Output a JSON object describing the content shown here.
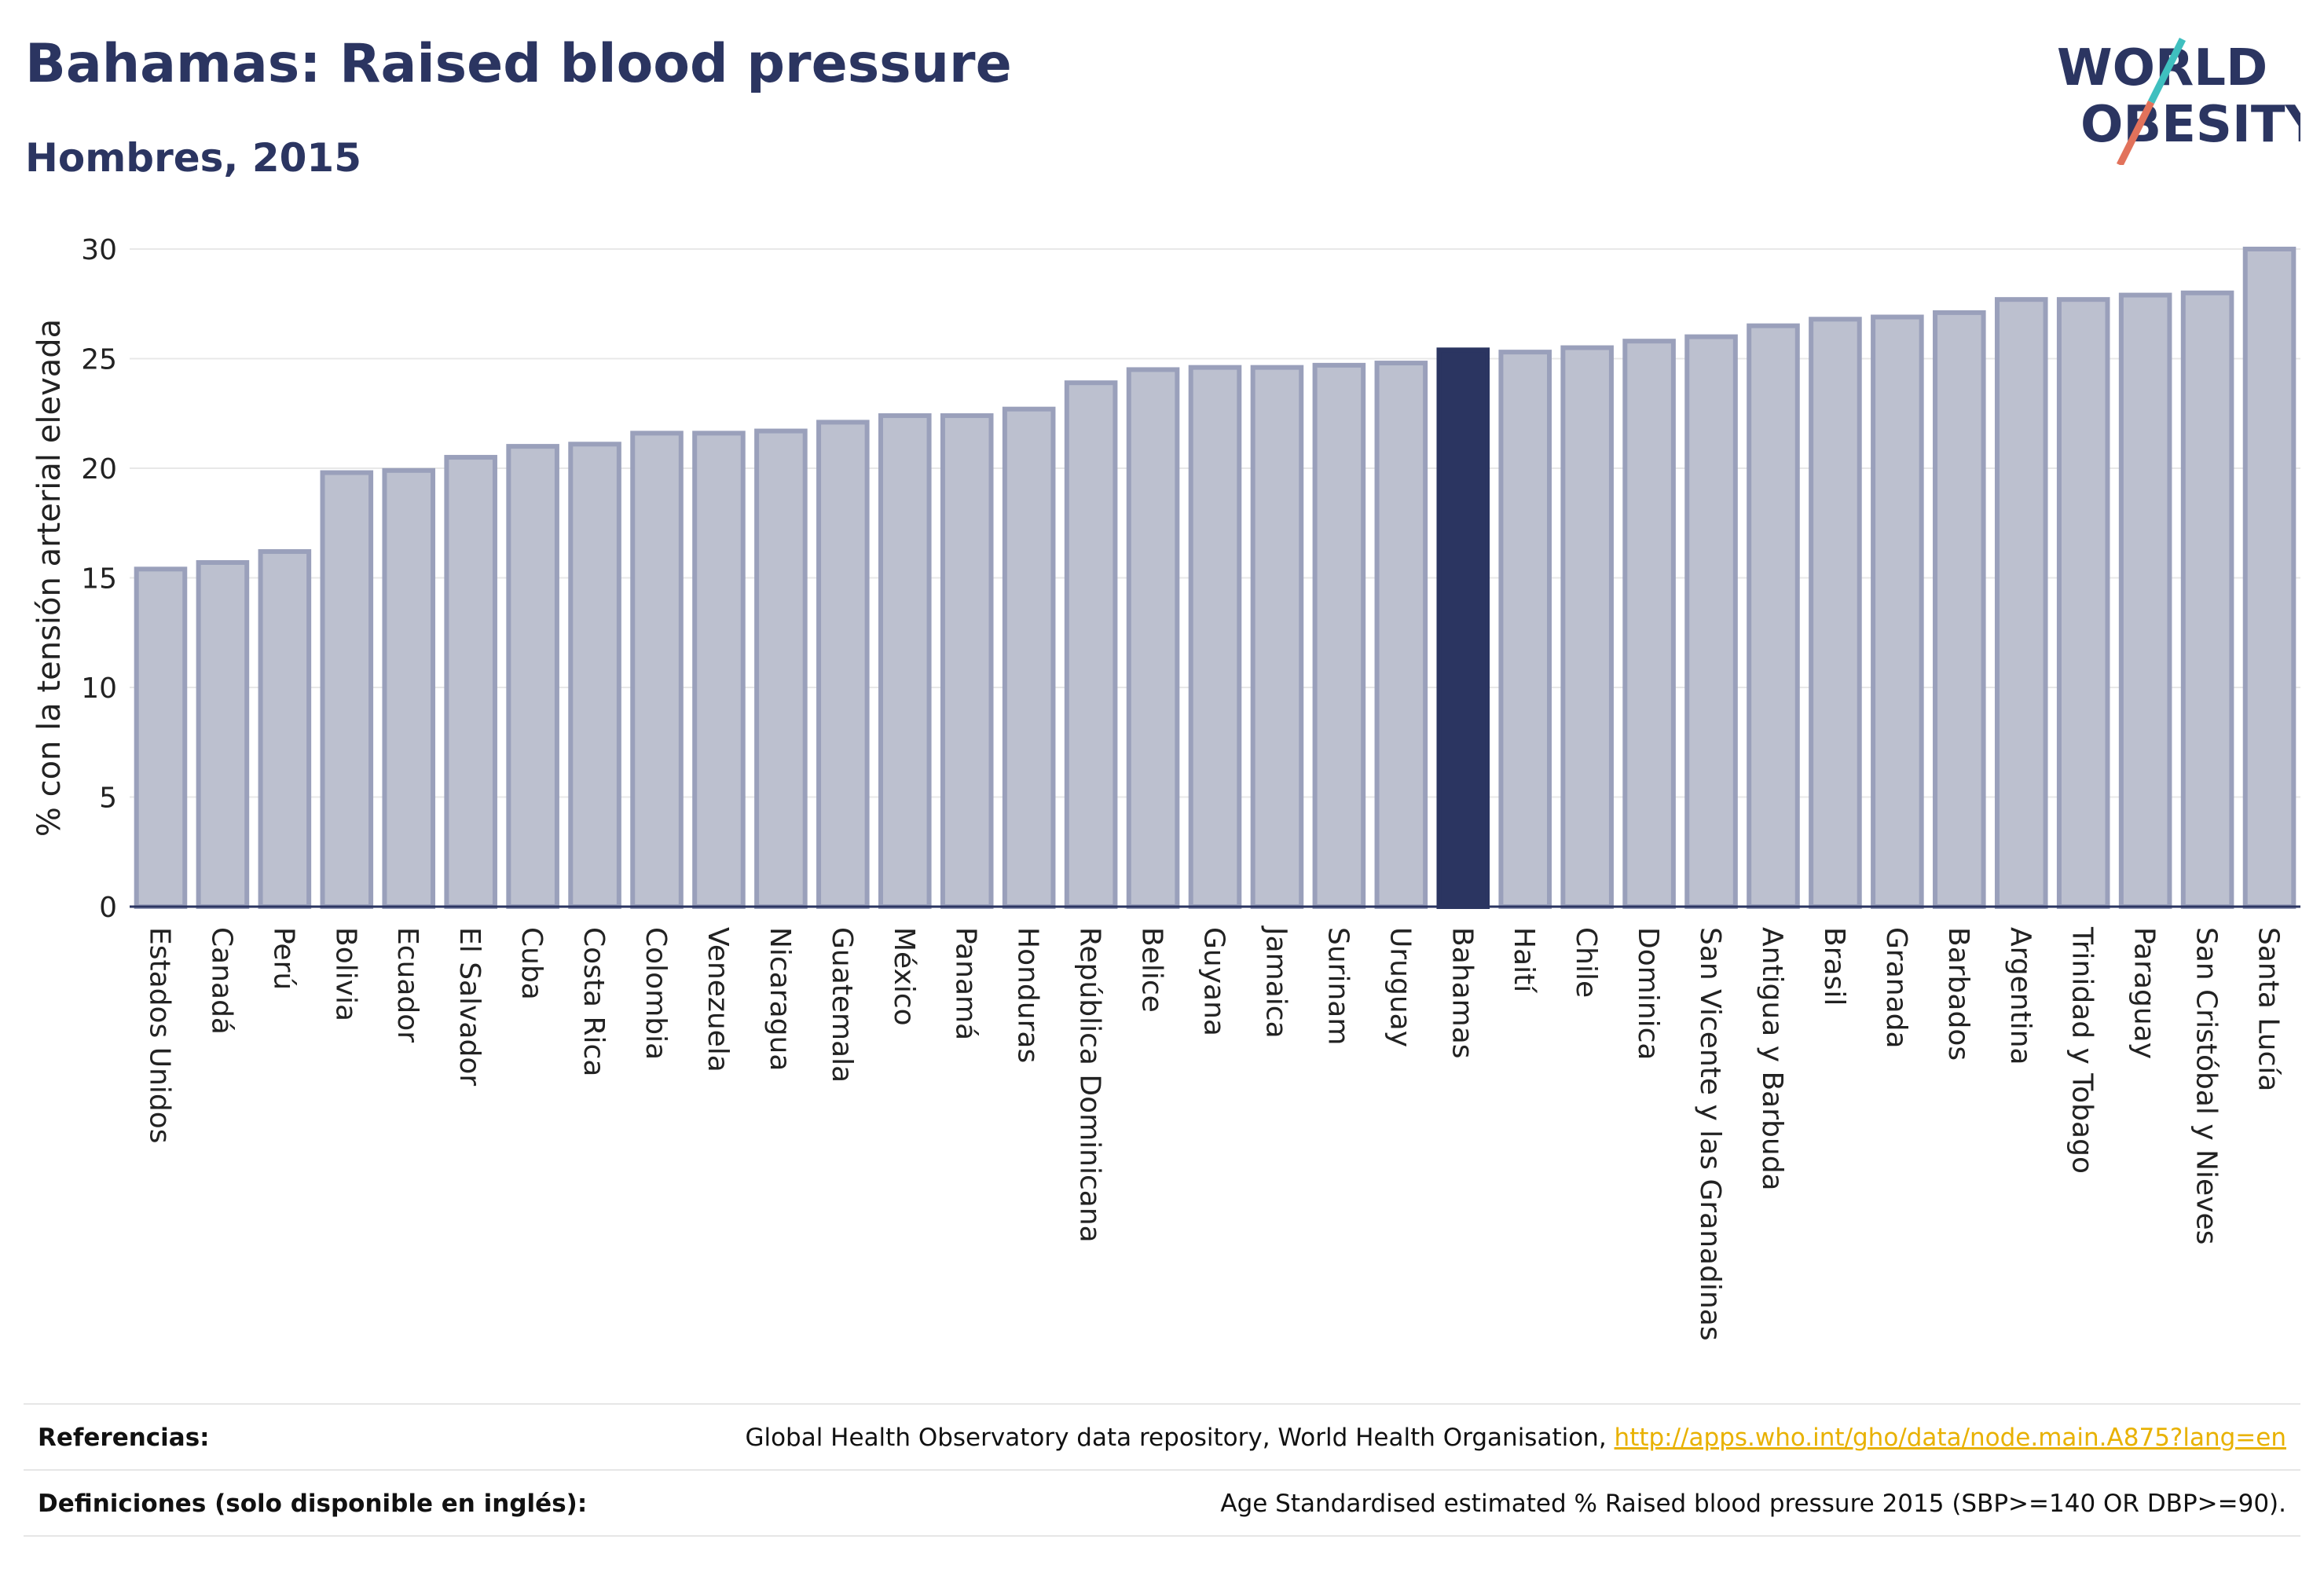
{
  "header": {
    "title": "Bahamas: Raised blood pressure",
    "subtitle": "Hombres, 2015"
  },
  "logo": {
    "line1": "WORLD",
    "line2": "OBESITY"
  },
  "chart_data": {
    "type": "bar",
    "ylabel": "% con la tensión arterial elevada",
    "ylim": [
      0,
      30
    ],
    "yticks": [
      0,
      5,
      10,
      15,
      20,
      25,
      30
    ],
    "grid": true,
    "highlight": "Bahamas",
    "colors": {
      "bar": "#bcc0cf",
      "bar_edge": "#9aa0bb",
      "highlight": "#2b3561"
    },
    "categories": [
      "Estados Unidos",
      "Canadá",
      "Perú",
      "Bolivia",
      "Ecuador",
      "El Salvador",
      "Cuba",
      "Costa Rica",
      "Colombia",
      "Venezuela",
      "Nicaragua",
      "Guatemala",
      "México",
      "Panamá",
      "Honduras",
      "República Dominicana",
      "Belice",
      "Guyana",
      "Jamaica",
      "Surinam",
      "Uruguay",
      "Bahamas",
      "Haití",
      "Chile",
      "Dominica",
      "San Vicente y las Granadinas",
      "Antigua y Barbuda",
      "Brasil",
      "Granada",
      "Barbados",
      "Argentina",
      "Trinidad y Tobago",
      "Paraguay",
      "San Cristóbal y Nieves",
      "Santa Lucía"
    ],
    "values": [
      15.4,
      15.7,
      16.2,
      19.8,
      19.9,
      20.5,
      21.0,
      21.1,
      21.6,
      21.6,
      21.7,
      22.1,
      22.4,
      22.4,
      22.7,
      23.9,
      24.5,
      24.6,
      24.6,
      24.7,
      24.8,
      25.4,
      25.3,
      25.5,
      25.8,
      26.0,
      26.5,
      26.8,
      26.9,
      27.1,
      27.7,
      27.7,
      27.9,
      28.0,
      30.0
    ]
  },
  "footer": {
    "references_label": "Referencias:",
    "references_text": "Global Health Observatory data repository, World Health Organisation, ",
    "references_link": "http://apps.who.int/gho/data/node.main.A875?lang=en",
    "definitions_label": "Definiciones (solo disponible en inglés):",
    "definitions_text": "Age Standardised estimated % Raised blood pressure 2015 (SBP>=140 OR DBP>=90)."
  }
}
